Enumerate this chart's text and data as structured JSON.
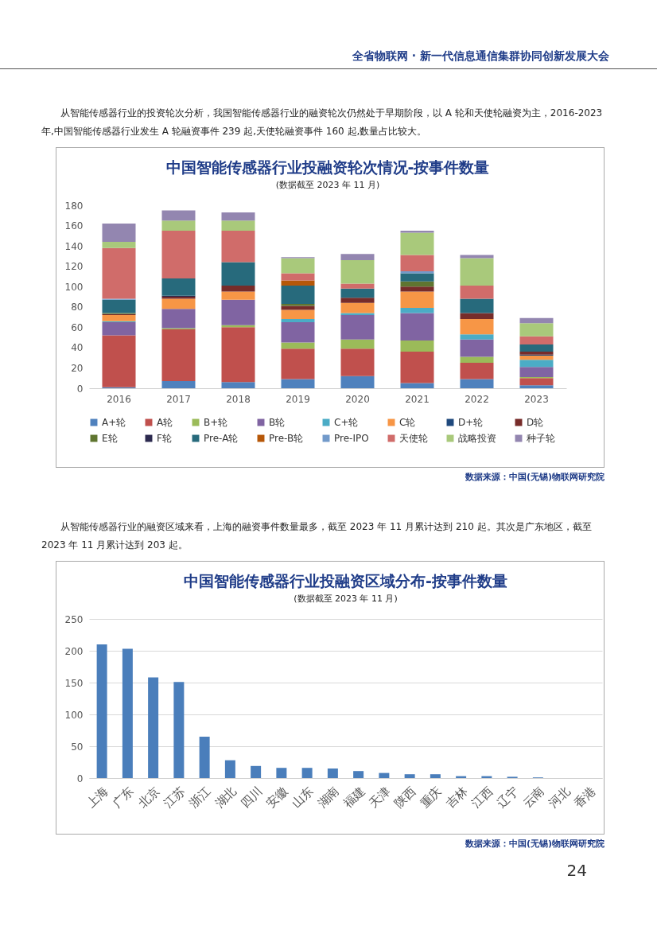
{
  "chart_data": [
    {
      "type": "bar",
      "title": "中国智能传感器行业投融资轮次情况-按事件数量",
      "subtitle": "(数据截至 2023 年 11 月)",
      "categories": [
        "2016",
        "2017",
        "2018",
        "2019",
        "2020",
        "2021",
        "2022",
        "2023"
      ],
      "stacked": true,
      "ylim": [
        0,
        180
      ],
      "yticks": [
        0,
        20,
        40,
        60,
        80,
        100,
        120,
        140,
        160,
        180
      ],
      "grid": false,
      "legend": "bottom",
      "series": [
        {
          "name": "A+轮",
          "color": "#4f81bd",
          "values": [
            1,
            7,
            6,
            9,
            12,
            5,
            9,
            3
          ]
        },
        {
          "name": "A轮",
          "color": "#c0504d",
          "values": [
            51,
            51,
            54,
            30,
            27,
            31,
            16,
            7
          ]
        },
        {
          "name": "B+轮",
          "color": "#9bbb59",
          "values": [
            0,
            1,
            2,
            6,
            9,
            11,
            6,
            1
          ]
        },
        {
          "name": "B轮",
          "color": "#8064a2",
          "values": [
            13,
            19,
            25,
            20,
            24,
            27,
            17,
            10
          ]
        },
        {
          "name": "C+轮",
          "color": "#4bacc6",
          "values": [
            1,
            0,
            0,
            3,
            2,
            5,
            5,
            7
          ]
        },
        {
          "name": "C轮",
          "color": "#f79646",
          "values": [
            6,
            10,
            8,
            9,
            10,
            16,
            15,
            4
          ]
        },
        {
          "name": "D+轮",
          "color": "#1f497d",
          "values": [
            0,
            0,
            0,
            0,
            0,
            0,
            0,
            1
          ]
        },
        {
          "name": "D轮",
          "color": "#772c2a",
          "values": [
            1,
            2,
            6,
            4,
            5,
            5,
            6,
            3
          ]
        },
        {
          "name": "E轮",
          "color": "#5f7530",
          "values": [
            1,
            0,
            0,
            2,
            0,
            5,
            0,
            0
          ]
        },
        {
          "name": "F轮",
          "color": "#2c2a4f",
          "values": [
            0,
            1,
            0,
            0,
            0,
            0,
            0,
            0
          ]
        },
        {
          "name": "Pre-A轮",
          "color": "#276a7c",
          "values": [
            13,
            17,
            23,
            18,
            9,
            8,
            14,
            7
          ]
        },
        {
          "name": "Pre-B轮",
          "color": "#b65708",
          "values": [
            0,
            0,
            0,
            5,
            0,
            0,
            0,
            0
          ]
        },
        {
          "name": "Pre-IPO",
          "color": "#729aca",
          "values": [
            1,
            0,
            0,
            0,
            0,
            2,
            0,
            0
          ]
        },
        {
          "name": "天使轮",
          "color": "#d06c6a",
          "values": [
            50,
            47,
            31,
            7,
            5,
            16,
            13,
            8
          ]
        },
        {
          "name": "战略投资",
          "color": "#a9c97b",
          "values": [
            6,
            10,
            10,
            15,
            23,
            22,
            27,
            13
          ]
        },
        {
          "name": "种子轮",
          "color": "#9386b0",
          "values": [
            18,
            10,
            8,
            1,
            6,
            2,
            3,
            5
          ]
        }
      ],
      "annotations": [
        "全省物联网 · 新一代信息通信集群协同创新发展大会",
        "从智能传感器行业的投资轮次分析，我国智能传感器行业的融资轮次仍然处于早期阶段，以 A 轮和天使轮融资为主，2016-2023 年,中国智能传感器行业发生 A 轮融资事件 239 起,天使轮融资事件 160 起,数量占比较大。",
        "数据来源：中国(无锡)物联网研究院"
      ]
    },
    {
      "type": "bar",
      "title": "中国智能传感器行业投融资区域分布-按事件数量",
      "subtitle": "(数据截至 2023 年 11 月)",
      "categories": [
        "上海",
        "广东",
        "北京",
        "江苏",
        "浙江",
        "湖北",
        "四川",
        "安徽",
        "山东",
        "湖南",
        "福建",
        "天津",
        "陕西",
        "重庆",
        "吉林",
        "江西",
        "辽宁",
        "云南",
        "河北",
        "香港"
      ],
      "values": [
        210,
        203,
        158,
        151,
        65,
        28,
        19,
        16,
        16,
        15,
        11,
        8,
        6,
        6,
        3,
        3,
        2,
        1,
        0,
        0
      ],
      "color": "#4a7ebb",
      "ylim": [
        0,
        250
      ],
      "yticks": [
        0,
        50,
        100,
        150,
        200,
        250
      ],
      "grid": "y",
      "annotations": [
        "从智能传感器行业的融资区域来看，上海的融资事件数量最多，截至 2023 年 11 月累计达到 210 起。其次是广东地区，截至 2023 年 11 月累计达到 203 起。",
        "数据来源：中国(无锡)物联网研究院",
        "24"
      ]
    }
  ]
}
